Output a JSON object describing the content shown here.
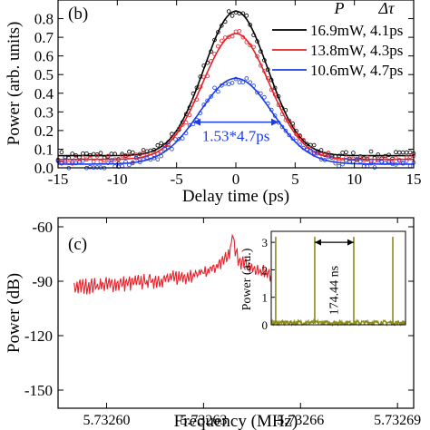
{
  "chart_data": [
    {
      "panel_label": "(b)",
      "type": "scatter",
      "xlabel": "Delay time (ps)",
      "ylabel": "Power (arb. units)",
      "xlim": [
        -15,
        15
      ],
      "ylim": [
        0,
        0.9
      ],
      "xticks": [
        -15,
        -10,
        -5,
        0,
        5,
        10,
        15
      ],
      "yticks": [
        0.0,
        0.1,
        0.2,
        0.3,
        0.4,
        0.5,
        0.6,
        0.7,
        0.8
      ],
      "ytick_labels": [
        "0.0",
        "0.1",
        "0.2",
        "0.3",
        "0.4",
        "0.5",
        "0.6",
        "0.7",
        "0.8"
      ],
      "legend_header": {
        "col1": "P",
        "col2": "Δτ"
      },
      "legend_position": "top-right",
      "series": [
        {
          "name": "16.9mW, 4.1ps",
          "color": "#000000",
          "peak": 0.84,
          "baseline": 0.065,
          "fwhm_ps": 6.3
        },
        {
          "name": "13.8mW, 4.3ps",
          "color": "#e8212b",
          "peak": 0.72,
          "baseline": 0.045,
          "fwhm_ps": 6.6
        },
        {
          "name": "10.6mW, 4.7ps",
          "color": "#1c3de8",
          "peak": 0.48,
          "baseline": 0.02,
          "fwhm_ps": 7.19
        }
      ],
      "annotation": {
        "text": "1.53*4.7ps",
        "x_from": -3.6,
        "x_to": 3.6,
        "y": 0.245,
        "color": "#1c3de8"
      }
    },
    {
      "panel_label": "(c)",
      "type": "line",
      "xlabel": "Frequency (MHz)",
      "ylabel": "Power (dB)",
      "xlim": [
        5.732585,
        5.732695
      ],
      "ylim": [
        -160,
        -55
      ],
      "xticks": [
        5.7326,
        5.73263,
        5.73266,
        5.73269
      ],
      "xtick_labels": [
        "5.73260",
        "5.73263",
        "5.73266",
        "5.73269"
      ],
      "yticks": [
        -150,
        -120,
        -90,
        -60
      ],
      "color": "#e8212b",
      "peak": {
        "x": 5.732639,
        "y": -66
      },
      "floor_db": -145,
      "inset": {
        "type": "line",
        "xlabel": "",
        "ylabel": "Power (a.u.)",
        "ylim": [
          0,
          3.4
        ],
        "yticks": [
          0,
          1,
          2,
          3
        ],
        "color": "#8c8c1c",
        "pulse_times_ns": [
          20,
          194.44,
          368.88,
          543.32
        ],
        "annotation": {
          "text": "174.44 ns",
          "x_from": 194.44,
          "x_to": 368.88
        }
      }
    }
  ]
}
